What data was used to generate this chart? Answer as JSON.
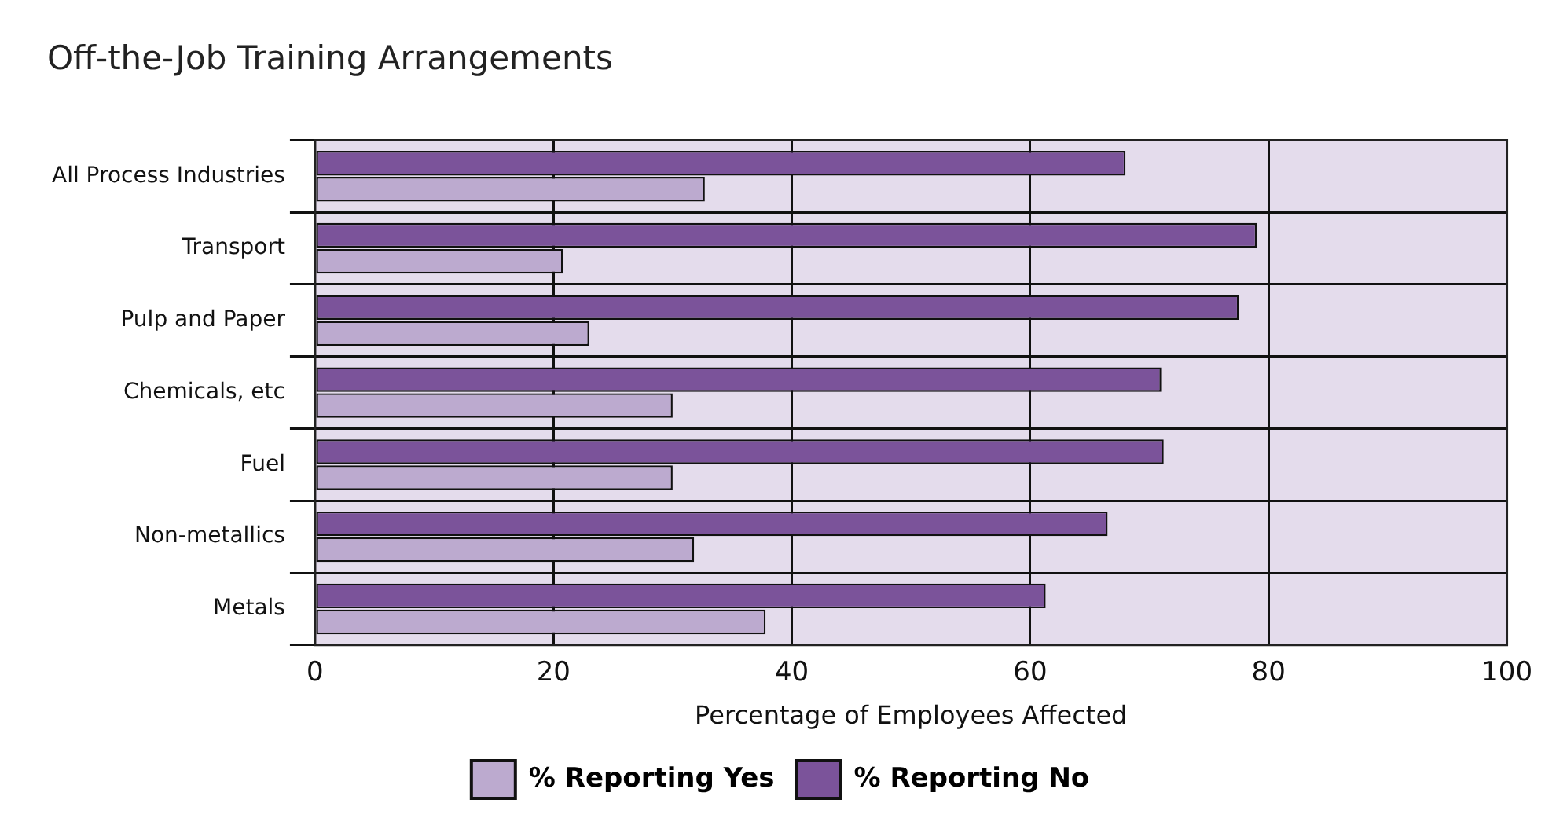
{
  "chart_data": {
    "type": "bar",
    "orientation": "horizontal",
    "title": "Off-the-Job Training Arrangements",
    "xlabel": "Percentage of Employees Affected",
    "categories": [
      "All Process Industries",
      "Transport",
      "Pulp and Paper",
      "Chemicals, etc",
      "Fuel",
      "Non-metallics",
      "Metals"
    ],
    "series": [
      {
        "name": "% Reporting Yes",
        "color": "#bcaacf",
        "values": [
          32.7,
          20.8,
          23.0,
          30.0,
          30.0,
          31.8,
          37.8
        ]
      },
      {
        "name": "% Reporting No",
        "color": "#7b539a",
        "values": [
          68.0,
          79.0,
          77.5,
          71.0,
          71.2,
          66.5,
          61.3
        ]
      }
    ],
    "xlim": [
      0,
      100
    ],
    "xticks": [
      0,
      20,
      40,
      60,
      80,
      100
    ],
    "grid": true,
    "legend": "bottom"
  }
}
